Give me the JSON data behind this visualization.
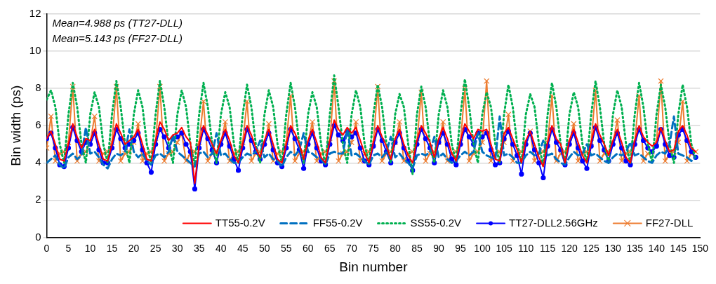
{
  "chart_data": {
    "type": "line",
    "xlabel": "Bin number",
    "ylabel": "Bin width (ps)",
    "annotations": [
      "Mean=4.988 ps (TT27-DLL)",
      "Mean=5.143 ps (FF27-DLL)"
    ],
    "x": [
      0,
      1,
      2,
      3,
      4,
      5,
      6,
      7,
      8,
      9,
      10,
      11,
      12,
      13,
      14,
      15,
      16,
      17,
      18,
      19,
      20,
      21,
      22,
      23,
      24,
      25,
      26,
      27,
      28,
      29,
      30,
      31,
      32,
      33,
      34,
      35,
      36,
      37,
      38,
      39,
      40,
      41,
      42,
      43,
      44,
      45,
      46,
      47,
      48,
      49,
      50,
      51,
      52,
      53,
      54,
      55,
      56,
      57,
      58,
      59,
      60,
      61,
      62,
      63,
      64,
      65,
      66,
      67,
      68,
      69,
      70,
      71,
      72,
      73,
      74,
      75,
      76,
      77,
      78,
      79,
      80,
      81,
      82,
      83,
      84,
      85,
      86,
      87,
      88,
      89,
      90,
      91,
      92,
      93,
      94,
      95,
      96,
      97,
      98,
      99,
      100,
      101,
      102,
      103,
      104,
      105,
      106,
      107,
      108,
      109,
      110,
      111,
      112,
      113,
      114,
      115,
      116,
      117,
      118,
      119,
      120,
      121,
      122,
      123,
      124,
      125,
      126,
      127,
      128,
      129,
      130,
      131,
      132,
      133,
      134,
      135,
      136,
      137,
      138,
      139,
      140,
      141,
      142,
      143,
      144,
      145,
      146,
      147,
      148,
      149
    ],
    "xlim": [
      0,
      150
    ],
    "xticks": [
      0,
      5,
      10,
      15,
      20,
      25,
      30,
      35,
      40,
      45,
      50,
      55,
      60,
      65,
      70,
      75,
      80,
      85,
      90,
      95,
      100,
      105,
      110,
      115,
      120,
      125,
      130,
      135,
      140,
      145,
      150
    ],
    "ylim": [
      0,
      12
    ],
    "yticks": [
      0,
      2,
      4,
      6,
      8,
      10,
      12
    ],
    "grid": "y",
    "legend": "bottom right",
    "series": [
      {
        "name": "TT55-0.2V",
        "color": "#ff0000",
        "marker": "none",
        "line_style": "solid",
        "values": [
          5.3,
          5.7,
          5.0,
          4.2,
          4.1,
          5.0,
          6.1,
          5.4,
          4.8,
          5.3,
          5.2,
          5.8,
          5.0,
          4.2,
          4.1,
          5.0,
          6.1,
          5.6,
          5.0,
          5.2,
          5.4,
          5.8,
          5.0,
          4.2,
          4.1,
          5.2,
          6.2,
          5.8,
          5.2,
          5.5,
          5.6,
          5.9,
          5.4,
          5.1,
          2.9,
          5.0,
          6.0,
          5.5,
          5.0,
          4.5,
          5.2,
          5.8,
          5.2,
          4.4,
          4.0,
          5.0,
          6.0,
          5.5,
          4.8,
          4.3,
          5.2,
          5.8,
          5.0,
          4.2,
          4.0,
          5.0,
          6.0,
          5.6,
          5.0,
          4.2,
          5.2,
          5.8,
          5.1,
          4.3,
          4.0,
          5.2,
          6.3,
          5.8,
          5.5,
          5.9,
          5.6,
          5.9,
          5.2,
          4.5,
          4.0,
          5.1,
          6.0,
          5.4,
          4.9,
          4.2,
          5.3,
          5.8,
          5.0,
          4.4,
          4.0,
          5.2,
          6.0,
          5.6,
          5.1,
          4.3,
          5.3,
          5.9,
          5.3,
          4.5,
          4.1,
          5.2,
          6.1,
          5.7,
          5.3,
          5.8,
          5.7,
          5.8,
          5.0,
          4.2,
          4.1,
          5.6,
          5.9,
          5.3,
          4.7,
          4.0,
          5.2,
          5.7,
          5.0,
          4.3,
          3.8,
          5.1,
          6.0,
          5.3,
          5.0,
          4.0,
          5.2,
          5.8,
          5.1,
          4.4,
          4.0,
          5.1,
          6.1,
          5.5,
          5.0,
          4.4,
          5.2,
          5.8,
          5.1,
          4.3,
          4.0,
          5.2,
          6.0,
          5.4,
          5.1,
          4.9,
          5.1,
          5.9,
          5.2,
          4.6,
          4.7,
          5.7,
          6.0,
          5.5,
          4.8,
          4.6
        ]
      },
      {
        "name": "FF55-0.2V",
        "color": "#0070c0",
        "marker": "none",
        "line_style": "dashed",
        "values": [
          4.0,
          4.2,
          4.4,
          3.9,
          3.7,
          4.3,
          4.5,
          4.2,
          4.4,
          5.9,
          4.5,
          4.6,
          4.3,
          3.9,
          3.7,
          4.2,
          4.5,
          4.4,
          4.6,
          5.8,
          4.6,
          4.3,
          4.5,
          4.1,
          3.9,
          4.4,
          4.5,
          4.3,
          4.6,
          5.5,
          4.6,
          4.4,
          4.2,
          4.0,
          3.8,
          4.5,
          4.6,
          4.3,
          4.5,
          5.6,
          4.4,
          4.5,
          4.2,
          4.0,
          4.0,
          4.3,
          4.5,
          4.4,
          4.6,
          5.2,
          4.3,
          4.5,
          4.2,
          4.1,
          3.8,
          4.3,
          4.6,
          4.4,
          4.7,
          5.6,
          4.6,
          4.5,
          4.3,
          4.2,
          3.9,
          4.5,
          4.6,
          4.5,
          4.5,
          5.8,
          4.4,
          4.5,
          4.3,
          4.1,
          3.9,
          4.4,
          4.5,
          4.3,
          4.6,
          5.4,
          4.3,
          4.5,
          4.2,
          4.0,
          3.7,
          4.4,
          4.5,
          4.4,
          4.6,
          5.4,
          4.3,
          4.5,
          4.2,
          4.0,
          4.1,
          4.4,
          4.6,
          4.4,
          4.6,
          5.6,
          4.6,
          4.4,
          4.3,
          4.2,
          6.5,
          4.4,
          4.5,
          4.3,
          4.0,
          4.0,
          4.4,
          4.6,
          4.4,
          4.5,
          5.2,
          4.4,
          4.5,
          4.2,
          4.0,
          3.9,
          4.3,
          4.6,
          4.4,
          4.5,
          5.0,
          4.4,
          4.5,
          4.3,
          4.1,
          4.0,
          4.3,
          4.5,
          4.4,
          4.6,
          5.1,
          4.4,
          4.5,
          4.3,
          4.1,
          4.0,
          4.4,
          4.6,
          4.5,
          5.0,
          6.5,
          4.5,
          4.4,
          4.3,
          4.1,
          4.3
        ]
      },
      {
        "name": "SS55-0.2V",
        "color": "#00b050",
        "marker": "none",
        "line_style": "dotted",
        "values": [
          7.4,
          7.9,
          7.0,
          5.0,
          4.0,
          6.6,
          8.3,
          7.0,
          5.0,
          4.0,
          6.6,
          7.8,
          7.0,
          5.0,
          4.0,
          6.6,
          8.4,
          7.0,
          5.0,
          4.0,
          6.6,
          7.9,
          7.0,
          5.0,
          4.0,
          6.6,
          8.4,
          7.0,
          5.0,
          4.0,
          6.6,
          7.9,
          7.0,
          5.0,
          3.9,
          6.6,
          8.3,
          7.0,
          5.0,
          4.0,
          6.6,
          7.8,
          7.0,
          5.0,
          4.0,
          6.6,
          8.2,
          7.0,
          5.0,
          4.0,
          6.6,
          7.9,
          7.0,
          5.0,
          4.0,
          6.6,
          8.3,
          7.0,
          5.0,
          4.0,
          6.6,
          7.8,
          7.0,
          5.0,
          3.9,
          6.6,
          8.7,
          7.0,
          5.0,
          4.0,
          6.6,
          7.9,
          7.0,
          5.0,
          3.9,
          6.6,
          8.2,
          7.0,
          5.0,
          4.0,
          6.6,
          7.7,
          7.0,
          5.0,
          3.4,
          6.6,
          8.1,
          7.0,
          5.0,
          4.0,
          6.6,
          7.9,
          7.0,
          5.0,
          4.0,
          6.6,
          8.5,
          7.0,
          5.0,
          4.0,
          6.6,
          7.8,
          7.0,
          5.0,
          4.0,
          6.6,
          8.2,
          7.0,
          5.0,
          4.0,
          6.6,
          7.7,
          7.0,
          5.0,
          3.8,
          6.6,
          8.3,
          7.0,
          5.0,
          4.0,
          6.6,
          7.8,
          7.0,
          5.0,
          4.0,
          6.6,
          8.4,
          7.0,
          5.0,
          4.0,
          6.6,
          7.9,
          7.0,
          5.0,
          4.0,
          6.6,
          8.3,
          7.0,
          5.0,
          4.0,
          6.6,
          8.2,
          7.0,
          5.0,
          4.0,
          6.6,
          8.2,
          7.0,
          5.0,
          4.2
        ]
      },
      {
        "name": "TT27-DLL2.56GHz",
        "color": "#0000ff",
        "marker": "circle",
        "line_style": "solid",
        "values": [
          5.3,
          5.6,
          4.8,
          3.9,
          3.8,
          4.8,
          5.9,
          5.2,
          4.6,
          5.1,
          5.0,
          5.6,
          4.7,
          4.0,
          4.0,
          4.8,
          5.8,
          5.3,
          4.8,
          5.0,
          5.2,
          5.6,
          4.7,
          4.0,
          3.5,
          5.0,
          5.8,
          5.4,
          4.8,
          5.3,
          5.4,
          5.6,
          5.0,
          4.6,
          2.6,
          4.8,
          5.8,
          5.3,
          4.7,
          4.0,
          5.0,
          5.6,
          4.9,
          4.2,
          3.6,
          4.8,
          5.8,
          5.2,
          4.6,
          4.2,
          5.0,
          5.6,
          4.7,
          4.0,
          3.8,
          4.8,
          5.8,
          5.3,
          4.7,
          3.7,
          5.0,
          5.6,
          4.8,
          4.1,
          3.9,
          5.0,
          6.0,
          5.5,
          5.2,
          5.7,
          5.4,
          5.6,
          4.8,
          4.1,
          3.9,
          4.9,
          5.8,
          5.2,
          4.6,
          4.0,
          5.1,
          5.6,
          4.8,
          4.1,
          3.6,
          5.0,
          5.8,
          5.3,
          4.8,
          4.0,
          5.1,
          5.6,
          5.0,
          4.2,
          3.9,
          5.0,
          5.8,
          5.4,
          5.0,
          5.6,
          5.4,
          5.6,
          4.7,
          3.9,
          4.0,
          5.3,
          5.7,
          5.0,
          4.4,
          3.4,
          5.0,
          5.6,
          4.7,
          4.0,
          3.2,
          4.9,
          5.8,
          5.1,
          4.7,
          3.9,
          5.0,
          5.6,
          4.8,
          4.1,
          3.7,
          4.9,
          5.9,
          5.2,
          4.7,
          4.1,
          5.0,
          5.6,
          4.8,
          4.1,
          3.9,
          5.0,
          5.8,
          5.2,
          4.8,
          4.6,
          4.9,
          5.8,
          5.0,
          4.4,
          4.3,
          5.5,
          5.8,
          5.2,
          4.6,
          4.3
        ]
      },
      {
        "name": "FF27-DLL",
        "color": "#ed7d31",
        "marker": "cross",
        "line_style": "solid",
        "values": [
          4.8,
          6.5,
          4.1,
          4.5,
          4.6,
          5.1,
          8.1,
          4.1,
          4.5,
          4.6,
          5.1,
          6.5,
          4.1,
          4.5,
          4.6,
          5.1,
          8.1,
          4.1,
          4.5,
          4.6,
          5.1,
          6.1,
          4.1,
          4.5,
          4.6,
          5.1,
          8.1,
          4.1,
          4.5,
          4.6,
          5.1,
          5.6,
          4.1,
          4.5,
          4.6,
          5.1,
          7.3,
          4.1,
          4.5,
          4.6,
          5.1,
          6.2,
          4.1,
          4.5,
          4.6,
          5.1,
          7.3,
          4.1,
          4.5,
          4.6,
          5.1,
          6.1,
          4.1,
          4.5,
          4.6,
          5.1,
          7.6,
          4.1,
          4.5,
          4.6,
          5.1,
          6.2,
          4.1,
          4.5,
          4.6,
          5.1,
          8.4,
          4.1,
          4.5,
          4.6,
          5.1,
          6.2,
          4.1,
          4.5,
          4.6,
          5.1,
          8.1,
          4.1,
          4.5,
          4.6,
          5.1,
          6.2,
          4.1,
          4.5,
          4.6,
          5.1,
          7.8,
          4.1,
          4.5,
          4.6,
          5.1,
          6.2,
          4.1,
          4.5,
          4.6,
          5.1,
          8.0,
          4.1,
          4.5,
          4.6,
          5.1,
          8.4,
          4.1,
          4.5,
          4.6,
          5.1,
          6.6,
          4.1,
          4.5,
          4.6,
          5.1,
          5.7,
          4.1,
          4.5,
          4.6,
          5.1,
          7.6,
          4.1,
          4.5,
          4.6,
          5.1,
          6.1,
          4.1,
          4.5,
          4.6,
          5.1,
          7.9,
          4.1,
          4.5,
          4.6,
          5.1,
          6.3,
          4.1,
          4.5,
          4.6,
          5.1,
          7.6,
          4.1,
          4.5,
          4.6,
          5.1,
          8.4,
          4.1,
          4.5,
          4.6,
          5.1,
          7.3,
          4.1,
          4.5,
          4.6
        ]
      }
    ]
  }
}
